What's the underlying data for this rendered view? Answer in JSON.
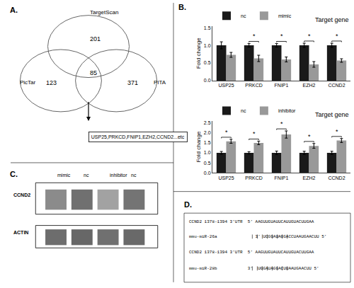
{
  "chart_data": [
    {
      "type": "venn",
      "title": "A.",
      "categories": [
        "TargetScan",
        "PicTar",
        "PITA",
        null
      ],
      "values": [
        201,
        123,
        371,
        85
      ],
      "annotations": [
        "USP25,PRKCD,FNIP1,EZH2,CCND2...etc"
      ]
    },
    {
      "type": "bar",
      "title": "Target gene",
      "ylabel": "Fold change",
      "categories": [
        "USP25",
        "PRKCD",
        "FNIP1",
        "EZH2",
        "CCND2"
      ],
      "series": [
        {
          "name": "nc",
          "color": "#1a1a1a",
          "values": [
            1.0,
            1.0,
            1.0,
            1.0,
            1.0
          ],
          "errors": [
            0.1,
            0.05,
            0.05,
            0.06,
            0.06
          ]
        },
        {
          "name": "mimic",
          "color": "#999999",
          "values": [
            0.73,
            0.63,
            0.6,
            0.46,
            0.57
          ],
          "errors": [
            0.07,
            0.09,
            0.07,
            0.08,
            0.05
          ]
        }
      ],
      "ylim": [
        0.0,
        1.55
      ],
      "yticks": [
        {
          "value": 0.0,
          "label": "0.0"
        },
        0.5,
        {
          "value": 1.0,
          "label": "1.0"
        },
        1.5
      ],
      "grid": false,
      "legend": "upper left",
      "annotations": [
        {
          "text": "B."
        },
        {
          "text": "*",
          "x": "PRKCD"
        },
        {
          "text": "*",
          "x": "FNIP1"
        },
        {
          "text": "*",
          "x": "EZH2"
        },
        {
          "text": "*",
          "x": "CCND2"
        }
      ]
    },
    {
      "type": "bar",
      "title": "Target gene",
      "ylabel": "Fold change",
      "categories": [
        "USP25",
        "PRKCD",
        "FNIP1",
        "EZH2",
        "CCND2"
      ],
      "series": [
        {
          "name": "nc",
          "color": "#1a1a1a",
          "values": [
            1.0,
            1.0,
            1.0,
            1.0,
            1.0
          ],
          "errors": [
            0.07,
            0.06,
            0.09,
            0.08,
            0.08
          ]
        },
        {
          "name": "inhibitor",
          "color": "#999999",
          "values": [
            1.58,
            1.5,
            1.92,
            1.35,
            1.62
          ],
          "errors": [
            0.1,
            0.09,
            0.18,
            0.12,
            0.1
          ]
        }
      ],
      "ylim": [
        0.0,
        2.6
      ],
      "yticks": [
        {
          "value": 0.0,
          "label": "0.0"
        },
        0.5,
        {
          "value": 1.0,
          "label": "1.0"
        },
        1.5,
        {
          "value": 2.0,
          "label": "2.0"
        },
        2.5
      ],
      "grid": false,
      "legend": "upper left",
      "annotations": [
        {
          "text": "*",
          "x": "USP25"
        },
        {
          "text": "*",
          "x": "PRKCD"
        },
        {
          "text": "*",
          "x": "FNIP1"
        },
        {
          "text": "*",
          "x": "EZH2"
        },
        {
          "text": "*",
          "x": "CCND2"
        }
      ]
    },
    {
      "type": "gel",
      "title": "C.",
      "categories": [
        "mimic",
        "nc",
        "inhibitor",
        "nc"
      ],
      "series": [
        {
          "name": "CCND2",
          "values": [
            0.65,
            0.8,
            0.52,
            0.78
          ]
        },
        {
          "name": "ACTIN",
          "values": [
            0.82,
            0.85,
            0.8,
            0.84
          ]
        }
      ]
    },
    {
      "type": "text",
      "title": "D.",
      "annotations": [
        "CCND2 1378-1394 3’UTR  5’ AAGUUGUAUUCAUUGUACUUGAA",
        "mmu-miR-26a               3’ UCGGAUAGGACCUAAUGAACUU 5’",
        "CCND2 1378-1394 3’UTR  5’ AAGUUGUAUUCAUUGUACUUGAA",
        "mmu-miR-28b            3’  UGGAUAGGACUUAAUGAACUU 5’"
      ]
    }
  ]
}
